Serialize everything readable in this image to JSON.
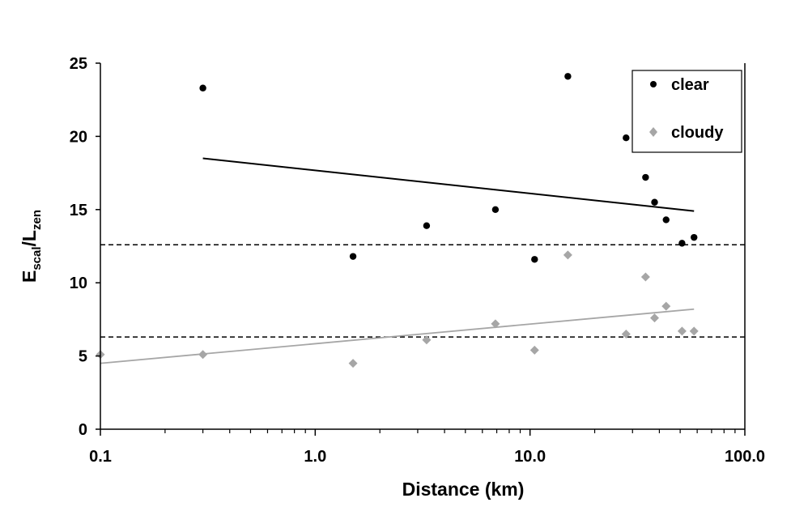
{
  "chart_data": {
    "type": "scatter",
    "title": "",
    "xlabel": "Distance (km)",
    "ylabel": {
      "main": "E",
      "sub1": "scal",
      "slash": "/L",
      "sub2": "zen"
    },
    "xscale": "log",
    "xlim": [
      0.1,
      100
    ],
    "ylim": [
      0,
      25
    ],
    "x_ticks": [
      {
        "value": 0.1,
        "label": "0.1"
      },
      {
        "value": 1,
        "label": "1.0"
      },
      {
        "value": 10,
        "label": "10.0"
      },
      {
        "value": 100,
        "label": "100.0"
      }
    ],
    "y_ticks": [
      {
        "value": 0,
        "label": "0"
      },
      {
        "value": 5,
        "label": "5"
      },
      {
        "value": 10,
        "label": "10"
      },
      {
        "value": 15,
        "label": "15"
      },
      {
        "value": 20,
        "label": "20"
      },
      {
        "value": 25,
        "label": "25"
      }
    ],
    "grid": false,
    "legend_position": "top-right",
    "series": [
      {
        "name": "clear",
        "marker": "circle",
        "color": "#000000",
        "points": [
          [
            0.3,
            23.3
          ],
          [
            1.5,
            11.8
          ],
          [
            3.3,
            13.9
          ],
          [
            6.9,
            15.0
          ],
          [
            10.5,
            11.6
          ],
          [
            15.0,
            24.1
          ],
          [
            28.0,
            19.9
          ],
          [
            34.5,
            17.2
          ],
          [
            38.0,
            15.5
          ],
          [
            43.0,
            14.3
          ],
          [
            51.0,
            12.7
          ],
          [
            58.0,
            13.1
          ]
        ],
        "trendline": [
          [
            0.3,
            18.5
          ],
          [
            58.0,
            14.9
          ]
        ]
      },
      {
        "name": "cloudy",
        "marker": "diamond",
        "color": "#a6a6a6",
        "points": [
          [
            0.1,
            5.1
          ],
          [
            0.3,
            5.1
          ],
          [
            1.5,
            4.5
          ],
          [
            3.3,
            6.1
          ],
          [
            6.9,
            7.2
          ],
          [
            10.5,
            5.4
          ],
          [
            15.0,
            11.9
          ],
          [
            28.0,
            6.5
          ],
          [
            34.5,
            10.4
          ],
          [
            38.0,
            7.6
          ],
          [
            43.0,
            8.4
          ],
          [
            51.0,
            6.7
          ],
          [
            58.0,
            6.7
          ]
        ],
        "trendline": [
          [
            0.1,
            4.5
          ],
          [
            58.0,
            8.2
          ]
        ]
      }
    ],
    "reference_lines": [
      {
        "y": 12.6,
        "style": "dashed",
        "color": "#000000"
      },
      {
        "y": 6.3,
        "style": "dashed",
        "color": "#000000"
      }
    ]
  }
}
